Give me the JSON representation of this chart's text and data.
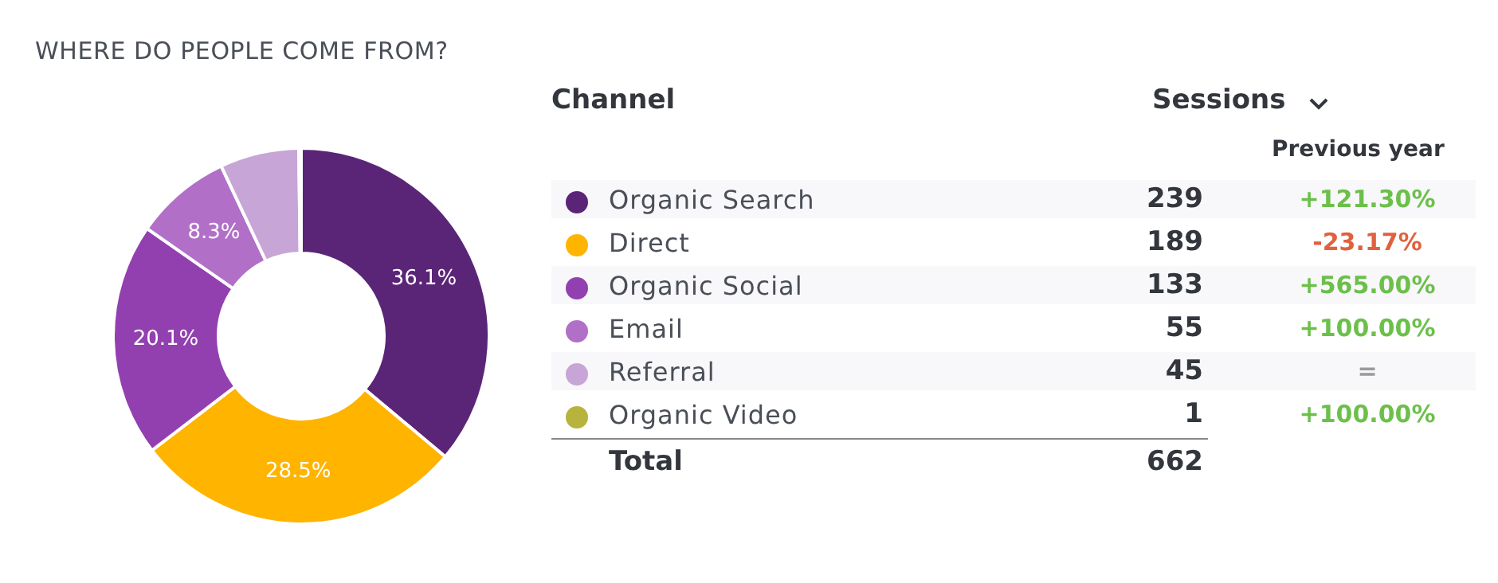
{
  "chart_data": {
    "type": "donut",
    "title": "WHERE DO PEOPLE COME FROM?",
    "legend_title": "Channel",
    "categories": [
      "Organic Search",
      "Direct",
      "Organic Social",
      "Email",
      "Referral",
      "Organic Video"
    ],
    "values": [
      36.1,
      28.5,
      20.1,
      8.3,
      6.8,
      0.2
    ],
    "colors": [
      "#5b2577",
      "#ffb400",
      "#9240b0",
      "#b16fc8",
      "#c7a5d6",
      "#b7b33c"
    ],
    "value_labels": [
      "36.1%",
      "28.5%",
      "20.1%",
      "8.3%",
      null,
      null
    ],
    "legend": "right",
    "annotations": [
      "Sessions",
      "Previous year",
      "Total",
      "662",
      {
        "text": "239",
        "x": "Organic Search"
      },
      {
        "text": "+121.30%",
        "x": "Organic Search"
      },
      {
        "text": "189",
        "x": "Direct"
      },
      {
        "text": "-23.17%",
        "x": "Direct"
      },
      {
        "text": "133",
        "x": "Organic Social"
      },
      {
        "text": "+565.00%",
        "x": "Organic Social"
      },
      {
        "text": "55",
        "x": "Email"
      },
      {
        "text": "+100.00%",
        "x": "Email"
      },
      {
        "text": "45",
        "x": "Referral"
      },
      {
        "text": "=",
        "x": "Referral"
      },
      {
        "text": "1",
        "x": "Organic Video"
      },
      {
        "text": "+100.00%",
        "x": "Organic Video"
      }
    ]
  }
}
